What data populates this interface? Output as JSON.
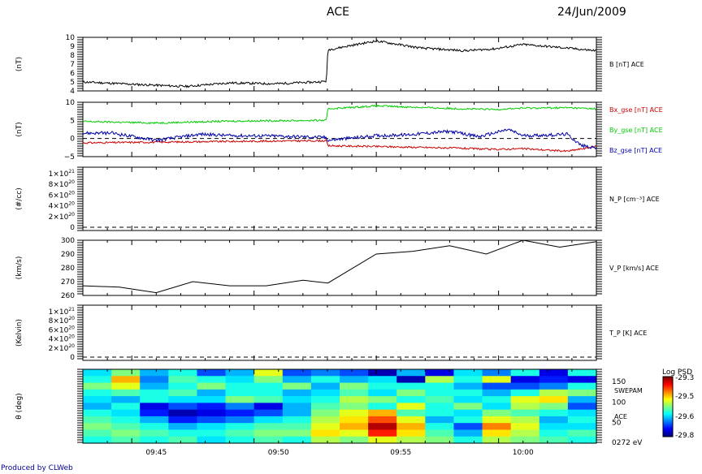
{
  "header": {
    "title": "ACE",
    "date": "24/Jun/2009",
    "footer": "Produced by CLWeb"
  },
  "colors": {
    "bx": "#cc0000",
    "by": "#00cc00",
    "bz": "#0000aa",
    "footer": "#000099"
  },
  "chart_data": [
    {
      "type": "line",
      "panel": "B",
      "ylabel": "(nT)",
      "series_label": "B [nT] ACE",
      "ylim": [
        4,
        10
      ],
      "yticks": [
        "10",
        "9",
        "8",
        "7",
        "6",
        "5",
        "4"
      ],
      "series": [
        {
          "x": [
            9.7,
            9.74,
            9.77,
            9.8,
            9.83,
            9.86,
            9.866,
            9.867,
            9.88,
            9.9,
            9.93,
            9.96,
            9.98,
            10.0,
            10.03,
            10.05
          ],
          "values": [
            5.0,
            4.7,
            4.5,
            4.9,
            4.8,
            5.0,
            5.1,
            8.6,
            9.0,
            9.6,
            8.8,
            8.5,
            8.7,
            9.2,
            8.8,
            8.5
          ]
        }
      ]
    },
    {
      "type": "line",
      "panel": "Bgse",
      "ylabel": "(nT)",
      "ylim": [
        -5,
        10
      ],
      "yticks": [
        "10",
        "5",
        "0",
        "−5"
      ],
      "series": [
        {
          "name": "Bx_gse [nT] ACE",
          "x": [
            9.7,
            9.75,
            9.8,
            9.83,
            9.866,
            9.867,
            9.9,
            9.95,
            9.98,
            10.0,
            10.03,
            10.05
          ],
          "values": [
            -1.2,
            -1.0,
            -0.8,
            -0.7,
            -0.6,
            -2.0,
            -2.2,
            -2.6,
            -3.0,
            -2.8,
            -3.5,
            -2.2
          ]
        },
        {
          "name": "By_gse [nT] ACE",
          "x": [
            9.7,
            9.75,
            9.8,
            9.83,
            9.866,
            9.867,
            9.9,
            9.95,
            9.98,
            10.0,
            10.03,
            10.05
          ],
          "values": [
            4.7,
            4.3,
            4.8,
            4.9,
            5.0,
            8.2,
            9.0,
            8.3,
            8.0,
            8.4,
            8.5,
            8.2
          ]
        },
        {
          "name": "Bz_gse [nT] ACE",
          "x": [
            9.7,
            9.72,
            9.75,
            9.78,
            9.8,
            9.83,
            9.866,
            9.867,
            9.9,
            9.92,
            9.95,
            9.97,
            9.99,
            10.0,
            10.02,
            10.03,
            10.04,
            10.05
          ],
          "values": [
            1.5,
            1.5,
            -0.5,
            1.2,
            0.8,
            0.7,
            0.3,
            -0.5,
            0.8,
            1.0,
            2.0,
            0.5,
            2.5,
            0.8,
            1.0,
            1.2,
            -2.0,
            -2.5
          ]
        }
      ]
    },
    {
      "type": "line",
      "panel": "N_P",
      "ylabel": "(#/cc)",
      "series_label": "N_P [cm^-3] ACE",
      "ylim": [
        0,
        1e+21
      ],
      "yticks": [
        "1×10^21",
        "8×10^20",
        "6×10^20",
        "4×10^20",
        "2×10^20",
        "0"
      ],
      "series": []
    },
    {
      "type": "line",
      "panel": "V_P",
      "ylabel": "(km/s)",
      "series_label": "V_P [km/s] ACE",
      "ylim": [
        260,
        300
      ],
      "yticks": [
        "300",
        "290",
        "280",
        "270",
        "260"
      ],
      "series": [
        {
          "x": [
            9.7,
            9.725,
            9.75,
            9.775,
            9.8,
            9.825,
            9.85,
            9.867,
            9.9,
            9.925,
            9.95,
            9.975,
            10.0,
            10.025,
            10.05
          ],
          "values": [
            267,
            266,
            262,
            270,
            267,
            267,
            271,
            269,
            290,
            292,
            296,
            290,
            300,
            295,
            299
          ]
        }
      ]
    },
    {
      "type": "line",
      "panel": "T_P",
      "ylabel": "(Kelvin)",
      "series_label": "T_P [K] ACE",
      "ylim": [
        0,
        1e+21
      ],
      "yticks": [
        "1×10^21",
        "8×10^20",
        "6×10^20",
        "4×10^20",
        "2×10^20",
        "0"
      ],
      "series": []
    },
    {
      "type": "heatmap",
      "panel": "SWEPAM",
      "ylabel": "θ (deg)",
      "right_labels": [
        "SWEPAM",
        "ACE",
        "0272 eV"
      ],
      "yticks": [
        "150",
        "100",
        "50"
      ],
      "ylim": [
        0,
        180
      ],
      "x": [
        "09:45",
        "09:50",
        "09:55",
        "10:00"
      ],
      "colorbar": {
        "title": "Log PSD",
        "ticks": [
          "-29.3",
          "-29.5",
          "-29.6",
          "-29.8"
        ],
        "range": [
          -29.8,
          -29.3
        ]
      },
      "grid_values": [
        [
          0.35,
          0.5,
          0.3,
          0.4,
          0.2,
          0.3,
          0.6,
          0.2,
          0.25,
          0.2,
          0.05,
          0.3,
          0.1,
          0.35,
          0.25,
          0.4,
          0.1,
          0.4
        ],
        [
          0.4,
          0.7,
          0.25,
          0.45,
          0.4,
          0.35,
          0.5,
          0.3,
          0.4,
          0.3,
          0.35,
          0.05,
          0.55,
          0.4,
          0.6,
          0.1,
          0.15,
          0.1
        ],
        [
          0.5,
          0.6,
          0.3,
          0.4,
          0.5,
          0.4,
          0.4,
          0.5,
          0.3,
          0.5,
          0.4,
          0.4,
          0.4,
          0.3,
          0.2,
          0.2,
          0.25,
          0.4
        ],
        [
          0.4,
          0.45,
          0.4,
          0.45,
          0.3,
          0.4,
          0.4,
          0.3,
          0.35,
          0.45,
          0.35,
          0.5,
          0.4,
          0.4,
          0.3,
          0.4,
          0.55,
          0.5
        ],
        [
          0.35,
          0.3,
          0.4,
          0.35,
          0.35,
          0.5,
          0.45,
          0.35,
          0.4,
          0.55,
          0.5,
          0.4,
          0.45,
          0.35,
          0.4,
          0.6,
          0.65,
          0.3
        ],
        [
          0.3,
          0.4,
          0.1,
          0.2,
          0.15,
          0.25,
          0.1,
          0.3,
          0.45,
          0.5,
          0.4,
          0.6,
          0.4,
          0.5,
          0.35,
          0.55,
          0.5,
          0.2
        ],
        [
          0.4,
          0.35,
          0.15,
          0.05,
          0.1,
          0.15,
          0.2,
          0.3,
          0.5,
          0.6,
          0.7,
          0.45,
          0.4,
          0.35,
          0.5,
          0.45,
          0.4,
          0.35
        ],
        [
          0.45,
          0.4,
          0.3,
          0.15,
          0.2,
          0.25,
          0.35,
          0.4,
          0.55,
          0.65,
          0.8,
          0.6,
          0.3,
          0.4,
          0.6,
          0.55,
          0.3,
          0.4
        ],
        [
          0.5,
          0.45,
          0.4,
          0.3,
          0.35,
          0.4,
          0.45,
          0.45,
          0.6,
          0.7,
          0.95,
          0.7,
          0.4,
          0.2,
          0.75,
          0.6,
          0.35,
          0.35
        ],
        [
          0.45,
          0.5,
          0.45,
          0.4,
          0.4,
          0.45,
          0.5,
          0.5,
          0.65,
          0.6,
          0.85,
          0.65,
          0.45,
          0.3,
          0.65,
          0.55,
          0.4,
          0.45
        ],
        [
          0.4,
          0.45,
          0.4,
          0.45,
          0.35,
          0.4,
          0.45,
          0.4,
          0.55,
          0.5,
          0.6,
          0.55,
          0.5,
          0.4,
          0.55,
          0.5,
          0.45,
          0.4
        ]
      ]
    }
  ]
}
